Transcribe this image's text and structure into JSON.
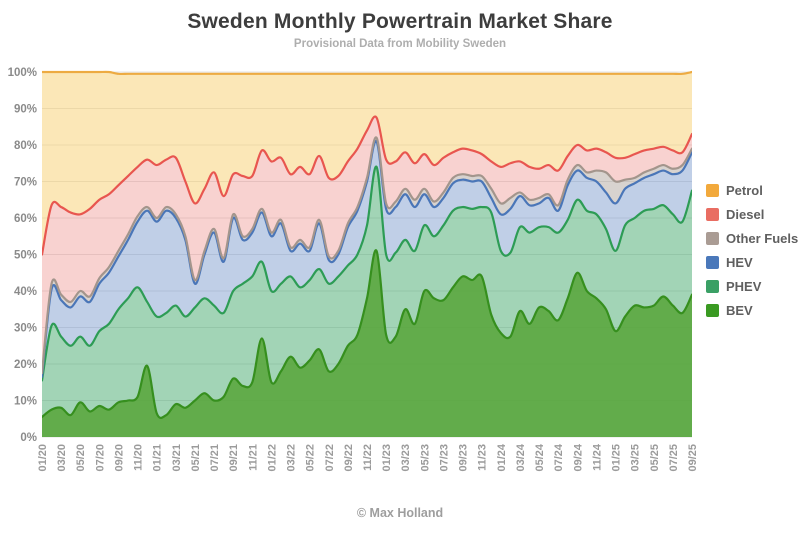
{
  "header": {
    "title": "Sweden Monthly Powertrain Market Share",
    "subtitle": "Provisional Data from Mobility Sweden"
  },
  "footer": {
    "credit": "© Max Holland"
  },
  "legend": [
    {
      "id": "petrol",
      "label": "Petrol",
      "color": "#f2a93c"
    },
    {
      "id": "diesel",
      "label": "Diesel",
      "color": "#e96d62"
    },
    {
      "id": "other-fuels",
      "label": "Other Fuels",
      "color": "#aa9c94"
    },
    {
      "id": "hev",
      "label": "HEV",
      "color": "#4a78ba"
    },
    {
      "id": "phev",
      "label": "PHEV",
      "color": "#3aa065"
    },
    {
      "id": "bev",
      "label": "BEV",
      "color": "#3a9a22"
    }
  ],
  "chart_data": {
    "type": "area",
    "stacked": true,
    "unit": "%",
    "title": "Sweden Monthly Powertrain Market Share",
    "subtitle": "Provisional Data from Mobility Sweden",
    "grid": true,
    "legend_position": "right",
    "ylim": [
      0,
      100
    ],
    "y_ticks": [
      "0%",
      "10%",
      "20%",
      "30%",
      "40%",
      "50%",
      "60%",
      "70%",
      "80%",
      "90%",
      "100%"
    ],
    "months": [
      "01/20",
      "02/20",
      "03/20",
      "04/20",
      "05/20",
      "06/20",
      "07/20",
      "08/20",
      "09/20",
      "10/20",
      "11/20",
      "12/20",
      "01/21",
      "02/21",
      "03/21",
      "04/21",
      "05/21",
      "06/21",
      "07/21",
      "08/21",
      "09/21",
      "10/21",
      "11/21",
      "12/21",
      "01/22",
      "02/22",
      "03/22",
      "04/22",
      "05/22",
      "06/22",
      "07/22",
      "08/22",
      "09/22",
      "10/22",
      "11/22",
      "12/22",
      "01/23",
      "02/23",
      "03/23",
      "04/23",
      "05/23",
      "06/23",
      "07/23",
      "08/23",
      "09/23",
      "10/23",
      "11/23",
      "12/23",
      "01/24",
      "02/24",
      "03/24",
      "04/24",
      "05/24",
      "06/24",
      "07/24",
      "08/24",
      "09/24",
      "10/24",
      "11/24",
      "12/24",
      "01/25",
      "02/25",
      "03/25",
      "04/25",
      "05/25",
      "06/25",
      "07/25",
      "08/25",
      "09/25"
    ],
    "x_tick_labels": [
      "01/20",
      "03/20",
      "05/20",
      "07/20",
      "09/20",
      "11/20",
      "01/21",
      "03/21",
      "05/21",
      "07/21",
      "09/21",
      "11/21",
      "01/22",
      "03/22",
      "05/22",
      "07/22",
      "09/22",
      "11/22",
      "01/23",
      "03/23",
      "05/23",
      "07/23",
      "09/23",
      "11/23",
      "01/24",
      "03/24",
      "05/24",
      "07/24",
      "09/24",
      "11/24",
      "01/25",
      "03/25",
      "05/25",
      "07/25",
      "09/25"
    ],
    "series": [
      {
        "id": "bev",
        "name": "BEV",
        "line_color": "#368f1e",
        "fill_color": "rgba(85,165,60,0.92)",
        "values": [
          5.5,
          7.5,
          8,
          6,
          9.5,
          7,
          8.5,
          7.5,
          9.5,
          10,
          11,
          19.5,
          6.5,
          6,
          9,
          8,
          10,
          12,
          10,
          11,
          16,
          14,
          15,
          27,
          15,
          18,
          22,
          19,
          21,
          24,
          18,
          20,
          25,
          28,
          38,
          51,
          28,
          27.5,
          35,
          31,
          40,
          38,
          37.5,
          41,
          44,
          43,
          44,
          33.5,
          28.5,
          27.5,
          34.5,
          31,
          35.5,
          34.5,
          32,
          38,
          45,
          40,
          38,
          35,
          29,
          33,
          36,
          35.5,
          36,
          38.5,
          36,
          34,
          39
        ]
      },
      {
        "id": "phev",
        "name": "PHEV",
        "line_color": "#2d9c55",
        "fill_color": "rgba(69,170,110,0.5)",
        "values": [
          10,
          23,
          19.5,
          19,
          18,
          18,
          20.5,
          23.5,
          25.5,
          28,
          30,
          17.5,
          26.5,
          28,
          27,
          25,
          25.5,
          26,
          26,
          23,
          24,
          28,
          29,
          21,
          25,
          24,
          22,
          22,
          22,
          22,
          24,
          24,
          22,
          22,
          20,
          23,
          22,
          23,
          19,
          20,
          18,
          17,
          20.5,
          21,
          19,
          19.5,
          19,
          28,
          22.5,
          23,
          23,
          25,
          22,
          23,
          24,
          21.5,
          20,
          22,
          23,
          22,
          22,
          25,
          24,
          26.5,
          26.5,
          25,
          25,
          25,
          28.5
        ]
      },
      {
        "id": "hev",
        "name": "HEV",
        "line_color": "#4a76b8",
        "fill_color": "rgba(106,140,198,0.42)",
        "values": [
          1,
          10,
          10,
          10.5,
          11,
          12,
          13,
          14,
          14.5,
          16,
          18,
          25,
          26,
          28,
          24,
          21,
          6.5,
          12,
          20,
          14,
          20,
          12,
          12,
          13.5,
          15,
          16.5,
          7,
          12,
          8,
          12.5,
          6.5,
          6,
          10.5,
          12,
          12,
          7,
          12.5,
          12.5,
          12.5,
          12,
          8.5,
          8,
          7.5,
          7.5,
          7.5,
          7.5,
          7,
          4,
          10,
          12,
          8.5,
          7.5,
          6.5,
          8,
          6,
          9.5,
          8,
          9,
          9,
          10,
          13,
          10,
          9.5,
          9,
          9.5,
          9.5,
          11,
          14,
          10.5
        ]
      },
      {
        "id": "other-fuels",
        "name": "Other Fuels",
        "line_color": "#a3958c",
        "fill_color": "rgba(163,149,140,0.42)",
        "values": [
          1,
          1.5,
          1.5,
          1.5,
          1.5,
          1.5,
          1.5,
          1.5,
          1.5,
          1.5,
          1.5,
          1,
          1,
          1,
          1,
          1,
          1,
          1,
          1,
          1,
          1,
          1,
          1,
          1,
          1,
          1,
          1,
          1,
          1,
          1,
          1,
          1,
          1,
          1,
          1,
          1,
          1.5,
          1.5,
          1.5,
          2,
          1.5,
          1.5,
          1.5,
          1.5,
          1.5,
          1.5,
          1.5,
          2.5,
          3,
          3,
          1,
          1.5,
          1.5,
          1,
          1.5,
          1.5,
          1.5,
          1.5,
          3,
          5.5,
          6,
          2.5,
          1.5,
          1.5,
          1.5,
          1.5,
          1.5,
          1.5,
          1
        ]
      },
      {
        "id": "diesel",
        "name": "Diesel",
        "line_color": "#e8564f",
        "fill_color": "rgba(236,130,124,0.36)",
        "values": [
          32.5,
          21.5,
          24,
          24.5,
          21,
          24,
          21.5,
          20,
          18,
          16,
          13.5,
          13,
          14.5,
          13,
          15.5,
          15,
          21,
          17,
          15.5,
          17,
          11,
          16.5,
          14.5,
          16,
          19.5,
          17,
          20,
          20,
          20,
          17.5,
          21.5,
          20.5,
          17,
          16,
          13,
          5.5,
          12,
          11,
          10,
          10,
          9.5,
          10,
          9.5,
          7,
          7,
          7,
          6,
          7.5,
          10,
          9.5,
          8.5,
          9,
          8,
          8,
          9.5,
          6.5,
          5.5,
          6,
          6,
          5.5,
          6.5,
          6,
          6.5,
          6,
          5.5,
          5,
          5,
          3.5,
          4
        ]
      },
      {
        "id": "petrol",
        "name": "Petrol",
        "line_color": "#edab42",
        "fill_color": "rgba(246,201,95,0.45)",
        "values": [
          50,
          36.5,
          37,
          38.5,
          39,
          37.5,
          35,
          33.5,
          30.5,
          28,
          25.5,
          23.5,
          25,
          23.5,
          23,
          29.5,
          35.5,
          31.5,
          27,
          33.5,
          27.5,
          28,
          28,
          21,
          24,
          23,
          27.5,
          25.5,
          27.5,
          22.5,
          28.5,
          28,
          24,
          20.5,
          15.5,
          12,
          23.5,
          24,
          21.5,
          24.5,
          22,
          25,
          23,
          21.5,
          20.5,
          21,
          22,
          24,
          25.5,
          24.5,
          24,
          25.5,
          26,
          25,
          26.5,
          22.5,
          19.5,
          21,
          20.5,
          21.5,
          23,
          23,
          22,
          21,
          20.5,
          20,
          21,
          21.5,
          17
        ]
      }
    ]
  }
}
